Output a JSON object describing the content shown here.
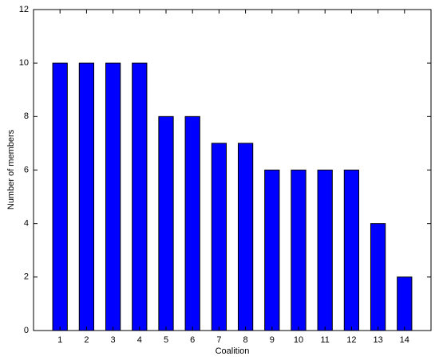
{
  "chart_data": {
    "type": "bar",
    "x_label": "Coalition",
    "y_label": "Number of members",
    "categories": [
      "1",
      "2",
      "3",
      "4",
      "5",
      "6",
      "7",
      "8",
      "9",
      "10",
      "11",
      "12",
      "13",
      "14"
    ],
    "values": [
      10,
      10,
      10,
      10,
      8,
      8,
      7,
      7,
      6,
      6,
      6,
      6,
      4,
      2
    ],
    "color": "#0000ff",
    "ylim": [
      0,
      12
    ],
    "yticks": [
      0,
      2,
      4,
      6,
      8,
      10,
      12
    ]
  }
}
